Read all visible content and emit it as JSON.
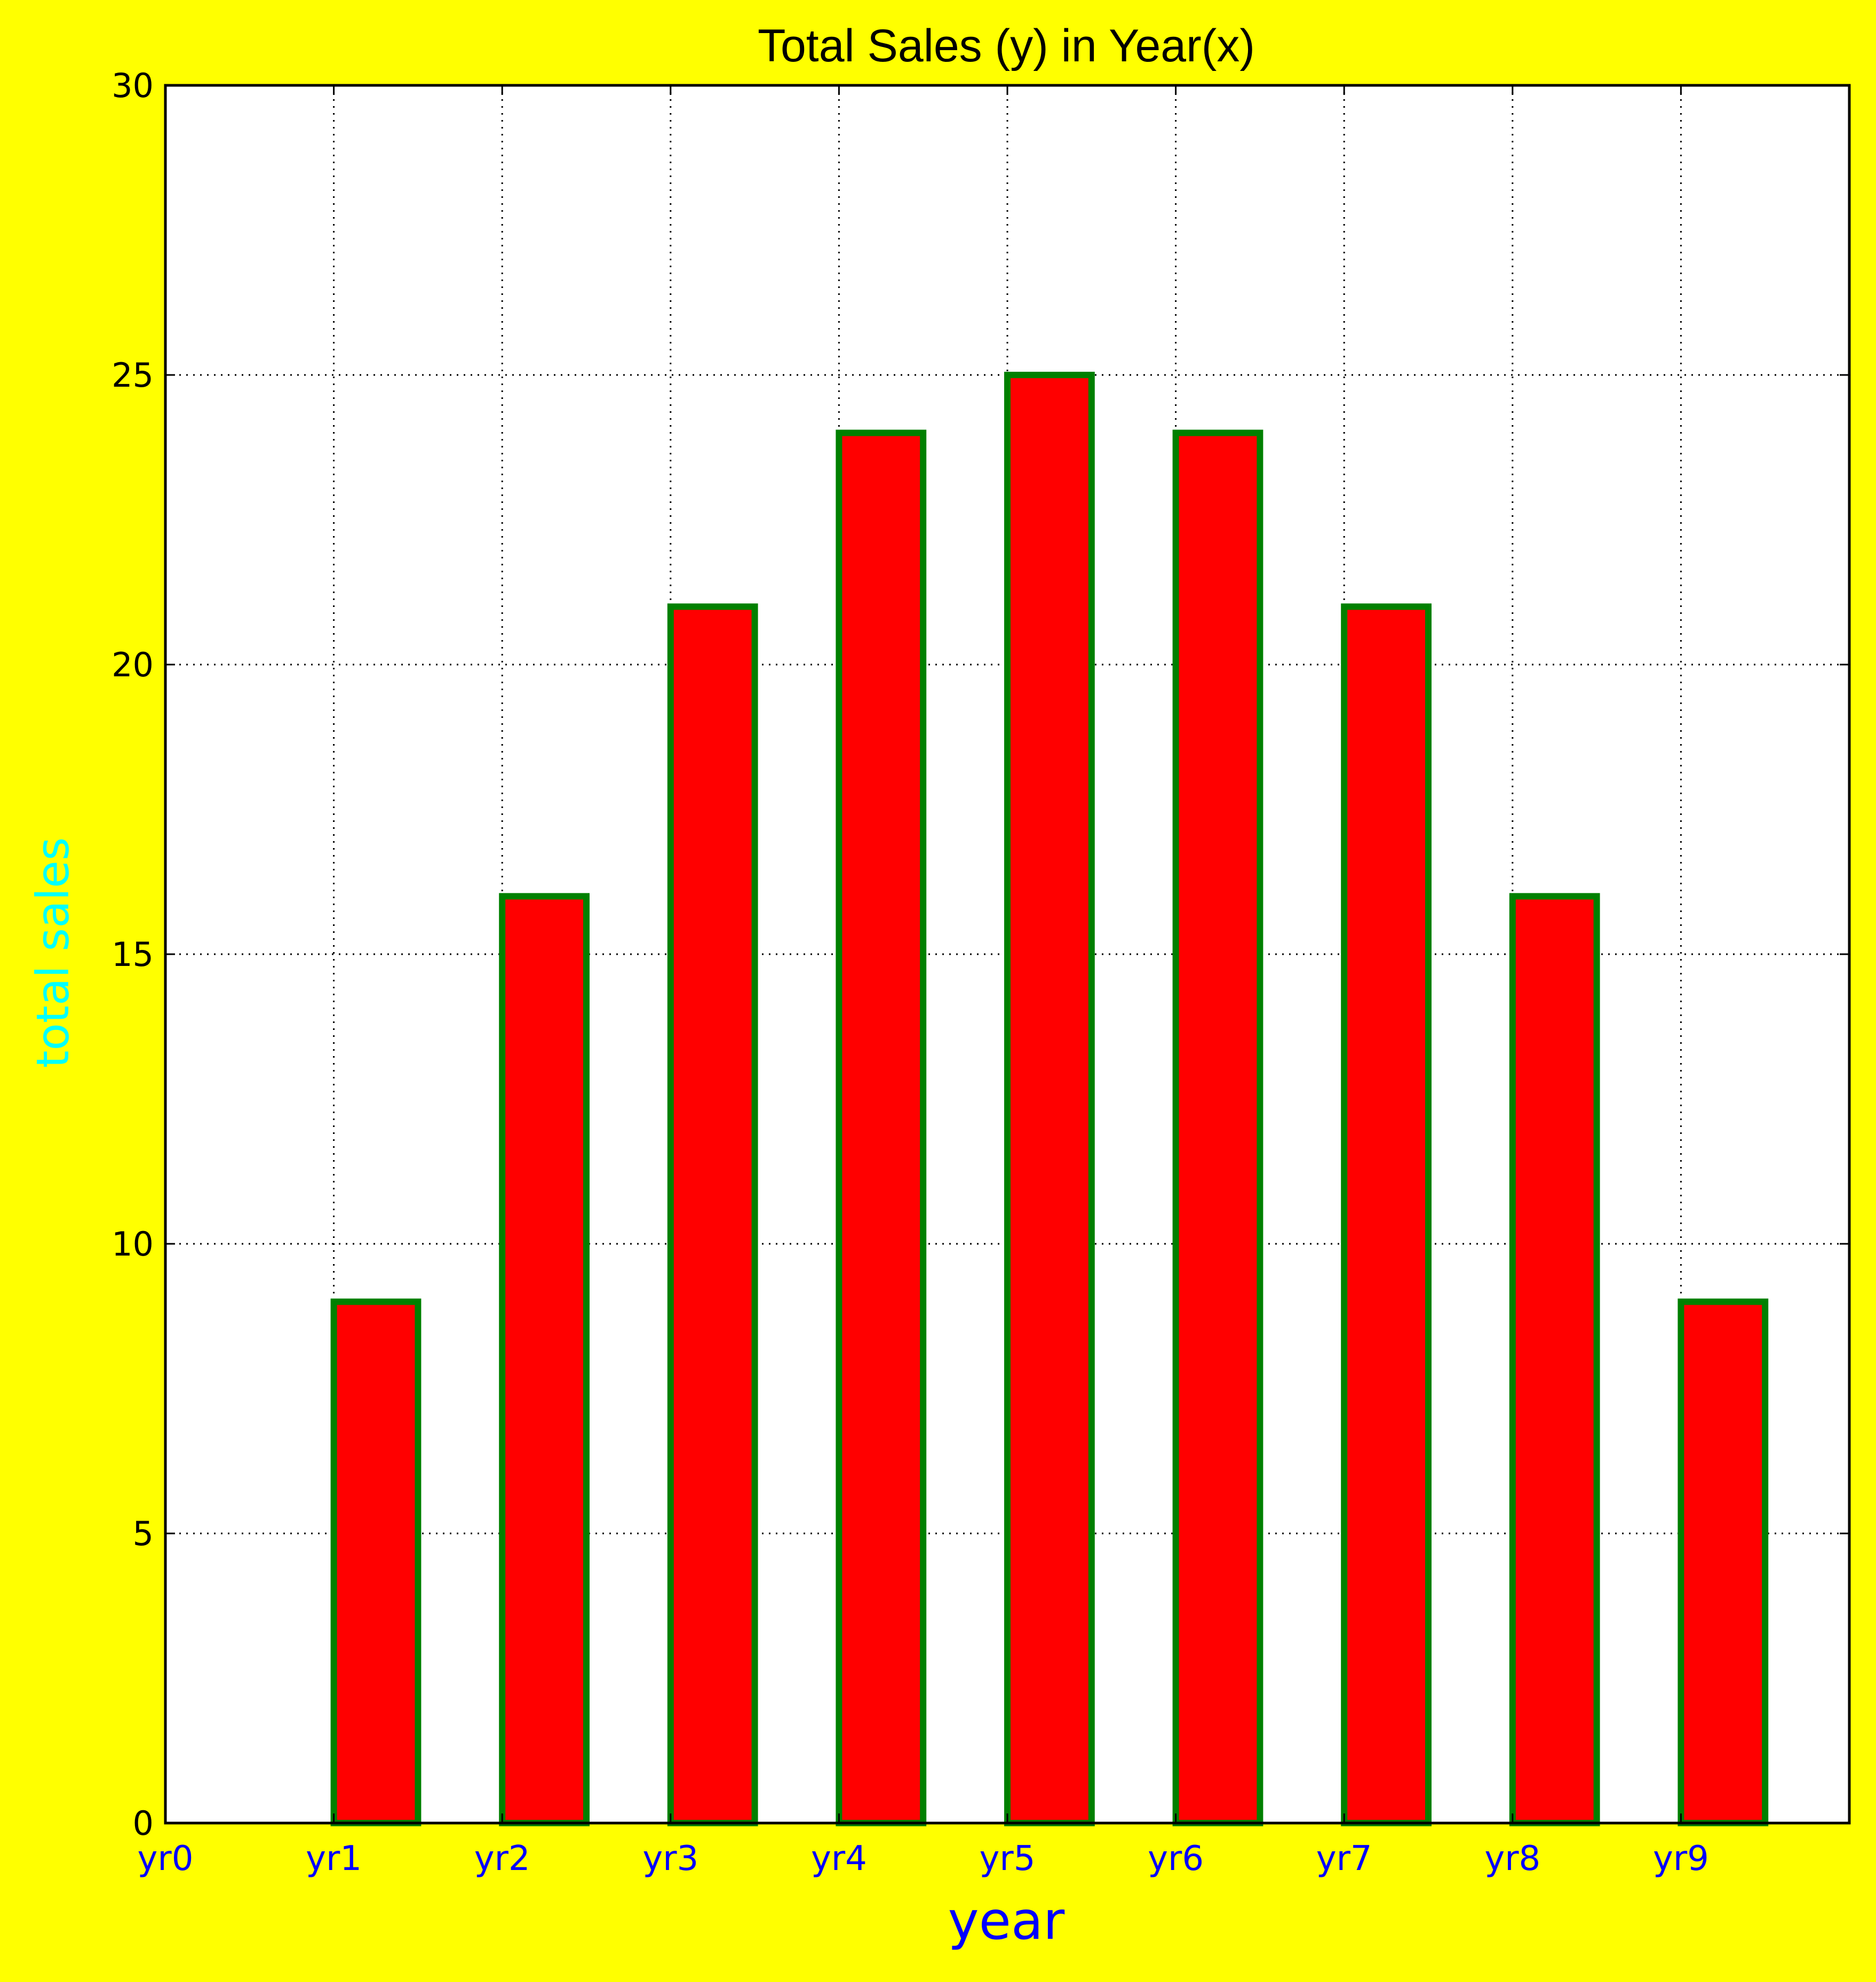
{
  "colors": {
    "figure_background": "#ffff00",
    "plot_background": "#ffffff",
    "bar_fill": "#ff0000",
    "bar_edge": "#008000",
    "title": "#000000",
    "xlabel": "#0000ff",
    "ylabel": "#00ffff",
    "xtick_labels": "#0000ff",
    "ytick_labels": "#000000",
    "grid": "#000000"
  },
  "chart_data": {
    "type": "bar",
    "title": "Total Sales (y) in Year(x)",
    "xlabel": "year",
    "ylabel": "total sales",
    "categories": [
      "yr0",
      "yr1",
      "yr2",
      "yr3",
      "yr4",
      "yr5",
      "yr6",
      "yr7",
      "yr8",
      "yr9"
    ],
    "values": [
      0,
      9,
      16,
      21,
      24,
      25,
      24,
      21,
      16,
      9
    ],
    "xlim": [
      0,
      10
    ],
    "ylim": [
      0,
      30
    ],
    "yticks": [
      0,
      5,
      10,
      15,
      20,
      25,
      30
    ],
    "bar_width": 0.5,
    "grid": true,
    "grid_style": "dotted",
    "legend": "none"
  }
}
